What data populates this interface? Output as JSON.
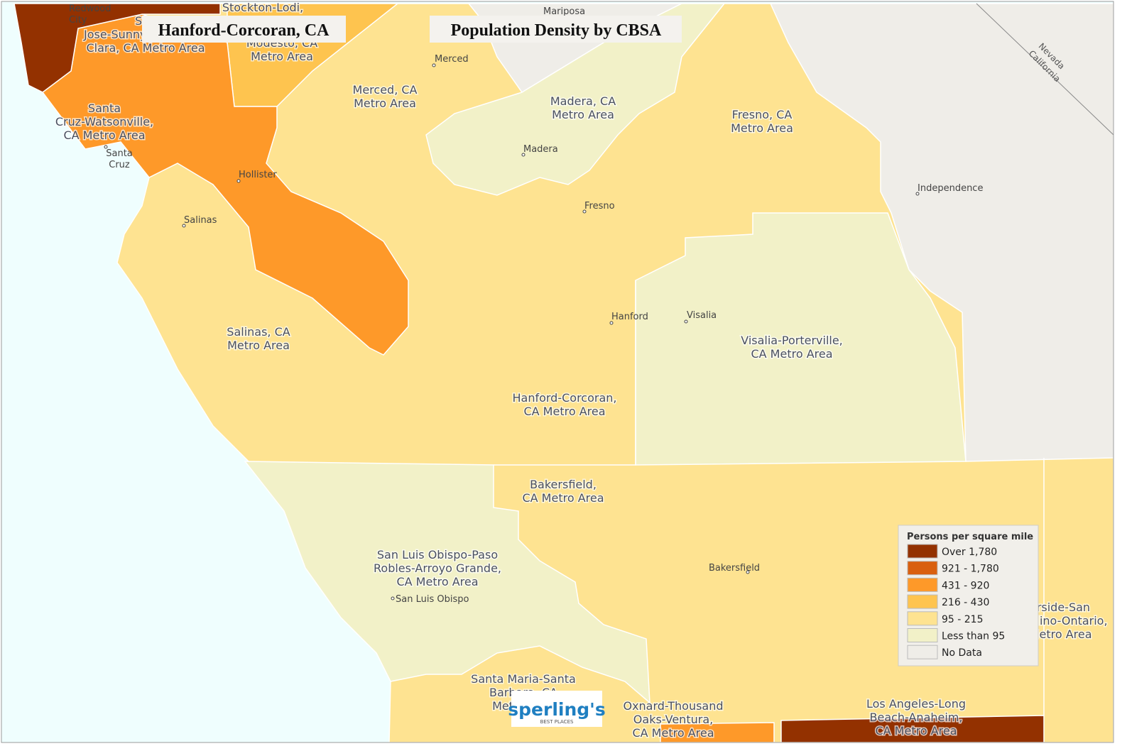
{
  "header": {
    "title": "Hanford-Corcoran, CA",
    "subtitle": "Population Density by CBSA"
  },
  "metro_areas": [
    {
      "lines": [
        "Stockton-Lodi,"
      ]
    },
    {
      "lines": [
        "Modesto, CA",
        "Metro Area"
      ]
    },
    {
      "lines": [
        "San",
        "Jose-Sunnyvale-Santa",
        "Clara, CA Metro Area"
      ]
    },
    {
      "lines": [
        "Santa",
        "Cruz-Watsonville,",
        "CA Metro Area"
      ]
    },
    {
      "lines": [
        "Merced, CA",
        "Metro Area"
      ]
    },
    {
      "lines": [
        "Madera, CA",
        "Metro Area"
      ]
    },
    {
      "lines": [
        "Fresno, CA",
        "Metro Area"
      ]
    },
    {
      "lines": [
        "Salinas, CA",
        "Metro Area"
      ]
    },
    {
      "lines": [
        "Visalia-Porterville,",
        "CA Metro Area"
      ]
    },
    {
      "lines": [
        "Hanford-Corcoran,",
        "CA Metro Area"
      ]
    },
    {
      "lines": [
        "Bakersfield,",
        "CA Metro Area"
      ]
    },
    {
      "lines": [
        "San Luis Obispo-Paso",
        "Robles-Arroyo Grande,",
        "CA Metro Area"
      ]
    },
    {
      "lines": [
        "Santa Maria-Santa",
        "Barbara, CA",
        "Metro Area"
      ]
    },
    {
      "lines": [
        "Oxnard-Thousand",
        "Oaks-Ventura,",
        "CA Metro Area"
      ]
    },
    {
      "lines": [
        "Los Angeles-Long",
        "Beach-Anaheim,",
        "CA Metro Area"
      ]
    },
    {
      "lines": [
        "Riverside-San",
        "Bernardino-Ontario,",
        "CA Metro Area"
      ]
    }
  ],
  "cities": [
    {
      "lines": [
        "Redwood",
        "City"
      ]
    },
    {
      "lines": [
        "Mariposa"
      ]
    },
    {
      "lines": [
        "Merced"
      ]
    },
    {
      "lines": [
        "Madera"
      ]
    },
    {
      "lines": [
        "Fresno"
      ]
    },
    {
      "lines": [
        "Hollister"
      ]
    },
    {
      "lines": [
        "Salinas"
      ]
    },
    {
      "lines": [
        "Santa",
        "Cruz"
      ]
    },
    {
      "lines": [
        "Hanford"
      ]
    },
    {
      "lines": [
        "Visalia"
      ]
    },
    {
      "lines": [
        "Independence"
      ]
    },
    {
      "lines": [
        "Bakersfield"
      ]
    },
    {
      "lines": [
        "San Luis Obispo"
      ]
    }
  ],
  "state_labels": [
    "Nevada",
    "California"
  ],
  "legend": {
    "title": "Persons per square mile",
    "items": [
      {
        "label": "Over 1,780",
        "color": "#933100"
      },
      {
        "label": "921 - 1,780",
        "color": "#d95f0e"
      },
      {
        "label": "431 - 920",
        "color": "#fe9929"
      },
      {
        "label": "216 - 430",
        "color": "#fec44f"
      },
      {
        "label": "95 - 215",
        "color": "#fee391"
      },
      {
        "label": "Less than 95",
        "color": "#f2f1c8"
      },
      {
        "label": "No Data",
        "color": "#efede8"
      }
    ]
  },
  "logo": {
    "name": "sperling's",
    "tagline": "BEST PLACES"
  }
}
